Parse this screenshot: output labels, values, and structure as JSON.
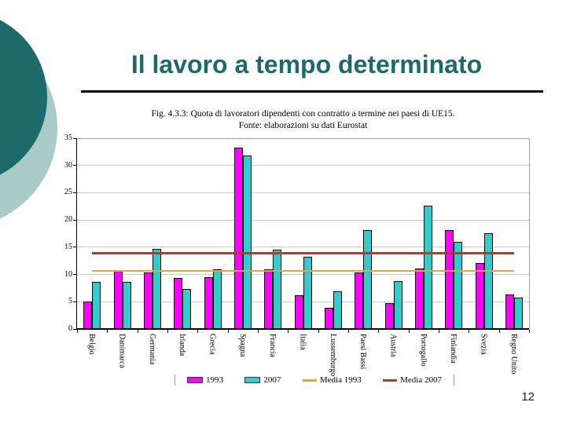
{
  "slide": {
    "title": "Il lavoro a tempo determinato",
    "page_number": "12"
  },
  "chart": {
    "title_line1": "Fig. 4.3.3: Quota di lavoratori dipendenti con contratto a termine nei paesi di UE15.",
    "title_line2": "Fonte: elaborazioni su dati Eurostat"
  },
  "chart_data": {
    "type": "bar",
    "title": "Fig. 4.3.3: Quota di lavoratori dipendenti con contratto a termine nei paesi di UE15.",
    "subtitle": "Fonte: elaborazioni su dati Eurostat",
    "categories": [
      "Belgio",
      "Danimarca",
      "Germania",
      "Irlanda",
      "Grecia",
      "Spagna",
      "Francia",
      "Italia",
      "Lussemburgo",
      "Paesi Bassi",
      "Austria",
      "Portogallo",
      "Finlandia",
      "Svezia",
      "Regno Unito"
    ],
    "series": [
      {
        "name": "1993",
        "color": "#FF00FF",
        "values": [
          5.1,
          10.7,
          10.3,
          9.4,
          9.5,
          33.2,
          10.9,
          6.2,
          3.9,
          10.4,
          4.7,
          11.1,
          18.2,
          12.1,
          6.3
        ]
      },
      {
        "name": "2007",
        "color": "#33CCCC",
        "values": [
          8.7,
          8.7,
          14.7,
          7.3,
          11.0,
          31.8,
          14.5,
          13.2,
          6.9,
          18.2,
          8.8,
          22.6,
          16.0,
          17.6,
          5.7
        ]
      }
    ],
    "reference_lines": [
      {
        "name": "Media 1993",
        "color": "#E8A33C",
        "value": 10.7
      },
      {
        "name": "Media 2007",
        "color": "#B23A2E",
        "value": 13.9
      }
    ],
    "xlabel": "",
    "ylabel": "",
    "ylim": [
      0,
      35
    ],
    "ytick_step": 5,
    "grid": true,
    "legend_position": "bottom"
  },
  "colors": {
    "title_teal": "#1D6A6A",
    "circle_dark": "#1D6A6A",
    "circle_light": "#A9CBC7",
    "bar_1993": "#FF00FF",
    "bar_2007": "#33CCCC",
    "media_1993": "#E8A33C",
    "media_2007": "#B23A2E"
  }
}
